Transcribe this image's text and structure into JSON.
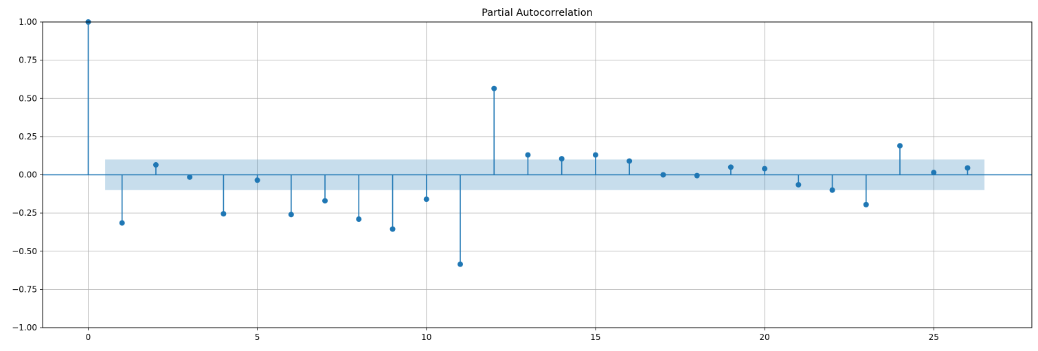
{
  "chart_data": {
    "type": "stem",
    "title": "Partial Autocorrelation",
    "xlabel": "",
    "ylabel": "",
    "xlim": [
      -1.35,
      27.9
    ],
    "ylim": [
      -1.0,
      1.0
    ],
    "xticks": [
      0,
      5,
      10,
      15,
      20,
      25
    ],
    "yticks": [
      -1.0,
      -0.75,
      -0.5,
      -0.25,
      0.0,
      0.25,
      0.5,
      0.75,
      1.0
    ],
    "xtick_labels": [
      "0",
      "5",
      "10",
      "15",
      "20",
      "25"
    ],
    "ytick_labels": [
      "−1.00",
      "−0.75",
      "−0.50",
      "−0.25",
      "0.00",
      "0.25",
      "0.50",
      "0.75",
      "1.00"
    ],
    "grid": true,
    "x": [
      0,
      1,
      2,
      3,
      4,
      5,
      6,
      7,
      8,
      9,
      10,
      11,
      12,
      13,
      14,
      15,
      16,
      17,
      18,
      19,
      20,
      21,
      22,
      23,
      24,
      25,
      26
    ],
    "values": [
      1.0,
      -0.315,
      0.065,
      -0.015,
      -0.255,
      -0.035,
      -0.26,
      -0.17,
      -0.29,
      -0.355,
      -0.16,
      -0.585,
      0.565,
      0.13,
      0.105,
      0.13,
      0.09,
      0.0,
      -0.005,
      0.05,
      0.04,
      -0.065,
      -0.1,
      -0.195,
      0.19,
      0.015,
      0.045
    ],
    "confidence_band": {
      "x_range": [
        0.5,
        26.5
      ],
      "lower": -0.1,
      "upper": 0.1
    },
    "colors": {
      "series": "#1f77b4",
      "band": "#1f77b4",
      "grid": "#b0b0b0"
    }
  }
}
